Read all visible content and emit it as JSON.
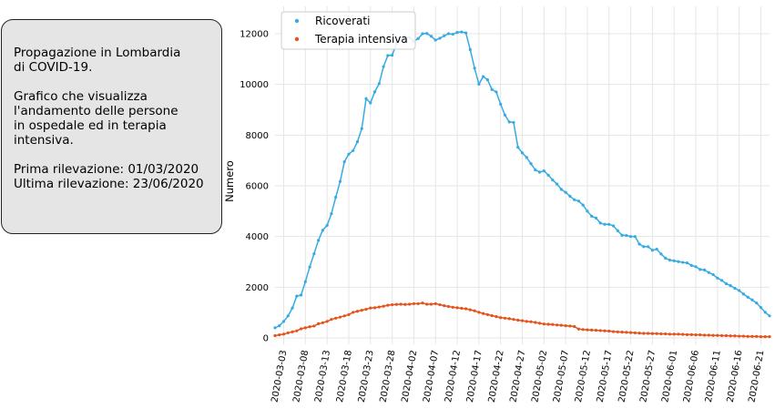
{
  "info": {
    "title": "Propagazione in Lombardia\ndi COVID-19.",
    "description": "Grafico che visualizza\nl'andamento delle persone\nin ospedale ed in terapia\nintensiva.",
    "first": "Prima rilevazione: 01/03/2020",
    "last": "Ultima rilevazione: 23/06/2020"
  },
  "colors": {
    "ricoverati": "#35abe2",
    "terapia": "#e5521b",
    "grid": "#e6e6e6"
  },
  "chart_data": {
    "type": "line",
    "ylabel": "Numero",
    "ylim": [
      0,
      12500
    ],
    "yticks": [
      0,
      2000,
      4000,
      6000,
      8000,
      10000,
      12000
    ],
    "xrange": [
      "2020-03-01",
      "2020-06-23"
    ],
    "xticks": [
      "2020-03-03",
      "2020-03-08",
      "2020-03-13",
      "2020-03-18",
      "2020-03-23",
      "2020-03-28",
      "2020-04-02",
      "2020-04-07",
      "2020-04-12",
      "2020-04-17",
      "2020-04-22",
      "2020-04-27",
      "2020-05-02",
      "2020-05-07",
      "2020-05-12",
      "2020-05-17",
      "2020-05-22",
      "2020-05-27",
      "2020-06-01",
      "2020-06-06",
      "2020-06-11",
      "2020-06-16",
      "2020-06-21"
    ],
    "grid": true,
    "legend_position": "top-left",
    "x": [
      "2020-03-01",
      "2020-03-02",
      "2020-03-03",
      "2020-03-04",
      "2020-03-05",
      "2020-03-06",
      "2020-03-07",
      "2020-03-08",
      "2020-03-09",
      "2020-03-10",
      "2020-03-11",
      "2020-03-12",
      "2020-03-13",
      "2020-03-14",
      "2020-03-15",
      "2020-03-16",
      "2020-03-17",
      "2020-03-18",
      "2020-03-19",
      "2020-03-20",
      "2020-03-21",
      "2020-03-22",
      "2020-03-23",
      "2020-03-24",
      "2020-03-25",
      "2020-03-26",
      "2020-03-27",
      "2020-03-28",
      "2020-03-29",
      "2020-03-30",
      "2020-03-31",
      "2020-04-01",
      "2020-04-02",
      "2020-04-03",
      "2020-04-04",
      "2020-04-05",
      "2020-04-06",
      "2020-04-07",
      "2020-04-08",
      "2020-04-09",
      "2020-04-10",
      "2020-04-11",
      "2020-04-12",
      "2020-04-13",
      "2020-04-14",
      "2020-04-15",
      "2020-04-16",
      "2020-04-17",
      "2020-04-18",
      "2020-04-19",
      "2020-04-20",
      "2020-04-21",
      "2020-04-22",
      "2020-04-23",
      "2020-04-24",
      "2020-04-25",
      "2020-04-26",
      "2020-04-27",
      "2020-04-28",
      "2020-04-29",
      "2020-04-30",
      "2020-05-01",
      "2020-05-02",
      "2020-05-03",
      "2020-05-04",
      "2020-05-05",
      "2020-05-06",
      "2020-05-07",
      "2020-05-08",
      "2020-05-09",
      "2020-05-10",
      "2020-05-11",
      "2020-05-12",
      "2020-05-13",
      "2020-05-14",
      "2020-05-15",
      "2020-05-16",
      "2020-05-17",
      "2020-05-18",
      "2020-05-19",
      "2020-05-20",
      "2020-05-21",
      "2020-05-22",
      "2020-05-23",
      "2020-05-24",
      "2020-05-25",
      "2020-05-26",
      "2020-05-27",
      "2020-05-28",
      "2020-05-29",
      "2020-05-30",
      "2020-05-31",
      "2020-06-01",
      "2020-06-02",
      "2020-06-03",
      "2020-06-04",
      "2020-06-05",
      "2020-06-06",
      "2020-06-07",
      "2020-06-08",
      "2020-06-09",
      "2020-06-10",
      "2020-06-11",
      "2020-06-12",
      "2020-06-13",
      "2020-06-14",
      "2020-06-15",
      "2020-06-16",
      "2020-06-17",
      "2020-06-18",
      "2020-06-19",
      "2020-06-20",
      "2020-06-21",
      "2020-06-22",
      "2020-06-23"
    ],
    "series": [
      {
        "name": "Ricoverati",
        "values": [
          400,
          480,
          650,
          870,
          1180,
          1650,
          1690,
          2220,
          2800,
          3320,
          3850,
          4250,
          4440,
          4900,
          5550,
          6170,
          6950,
          7250,
          7390,
          7740,
          8260,
          9440,
          9270,
          9710,
          10030,
          10700,
          11140,
          11150,
          11610,
          11850,
          11870,
          11850,
          11700,
          11810,
          12000,
          12010,
          11900,
          11750,
          11820,
          11920,
          12000,
          11980,
          12050,
          12070,
          12030,
          11370,
          10640,
          10010,
          10310,
          10180,
          9800,
          9700,
          9220,
          8790,
          8520,
          8500,
          7520,
          7300,
          7120,
          6870,
          6630,
          6540,
          6590,
          6420,
          6230,
          6070,
          5860,
          5740,
          5590,
          5450,
          5400,
          5240,
          5000,
          4800,
          4730,
          4530,
          4480,
          4480,
          4420,
          4230,
          4050,
          4040,
          4000,
          4000,
          3700,
          3600,
          3600,
          3460,
          3500,
          3310,
          3150,
          3070,
          3040,
          3010,
          2980,
          2960,
          2860,
          2810,
          2700,
          2680,
          2580,
          2500,
          2360,
          2270,
          2140,
          2060,
          1960,
          1870,
          1730,
          1610,
          1500,
          1380,
          1200,
          1010,
          870
        ]
      },
      {
        "name": "Terapia intensiva",
        "values": [
          90,
          120,
          150,
          200,
          240,
          280,
          360,
          400,
          440,
          470,
          560,
          600,
          650,
          730,
          780,
          820,
          870,
          920,
          1010,
          1050,
          1090,
          1130,
          1180,
          1190,
          1220,
          1250,
          1290,
          1310,
          1320,
          1330,
          1320,
          1330,
          1350,
          1350,
          1380,
          1330,
          1330,
          1350,
          1310,
          1270,
          1240,
          1210,
          1190,
          1170,
          1150,
          1110,
          1070,
          1010,
          960,
          920,
          880,
          840,
          800,
          780,
          760,
          730,
          700,
          680,
          650,
          640,
          610,
          580,
          550,
          540,
          530,
          510,
          500,
          480,
          470,
          450,
          350,
          330,
          320,
          310,
          300,
          290,
          280,
          270,
          250,
          240,
          230,
          220,
          210,
          200,
          190,
          180,
          180,
          170,
          170,
          160,
          160,
          150,
          150,
          150,
          140,
          130,
          130,
          120,
          120,
          110,
          110,
          100,
          100,
          90,
          90,
          80,
          80,
          70,
          70,
          60,
          60,
          60,
          50,
          50,
          50
        ]
      }
    ]
  }
}
